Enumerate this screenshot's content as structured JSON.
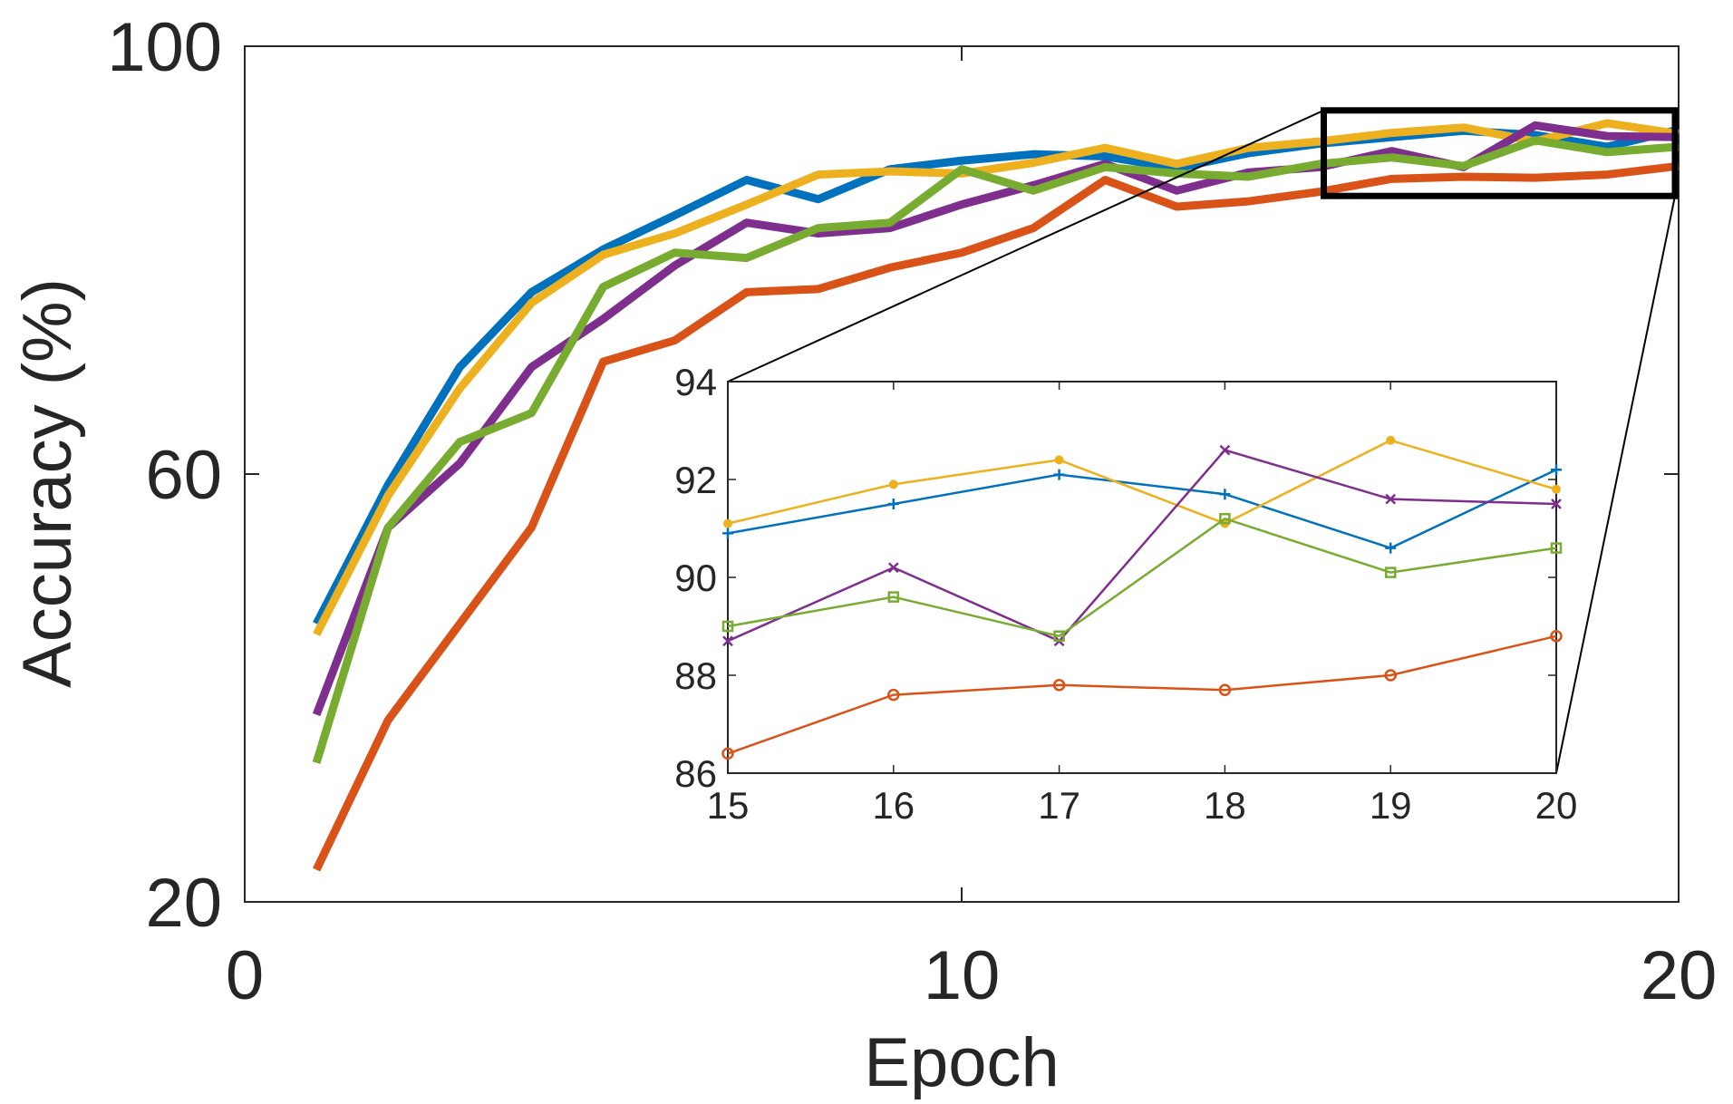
{
  "chart_data": {
    "main": {
      "type": "line",
      "title": "",
      "xlabel": "Epoch",
      "ylabel": "Accuracy (%)",
      "xlim": [
        0,
        20
      ],
      "ylim": [
        20,
        100
      ],
      "xticks": [
        0,
        10,
        20
      ],
      "xtick_labels": [
        "0",
        "10",
        "20"
      ],
      "yticks": [
        20,
        60,
        100
      ],
      "ytick_labels": [
        "20",
        "60",
        "100"
      ],
      "x": [
        1,
        2,
        3,
        4,
        5,
        6,
        7,
        8,
        9,
        10,
        11,
        12,
        13,
        14,
        15,
        16,
        17,
        18,
        19,
        20
      ],
      "series": [
        {
          "name": "blue",
          "color": "#0072BD",
          "values": [
            46,
            59,
            70,
            77,
            81,
            84.2,
            87.5,
            85.7,
            88.5,
            89.3,
            89.9,
            89.7,
            88.6,
            90,
            90.9,
            91.5,
            92.1,
            91.7,
            90.6,
            92.2
          ]
        },
        {
          "name": "orange",
          "color": "#D95319",
          "values": [
            23,
            37,
            46,
            55,
            70.5,
            72.5,
            77,
            77.3,
            79.3,
            80.7,
            83,
            87.5,
            85,
            85.5,
            86.4,
            87.6,
            87.8,
            87.7,
            88,
            88.8
          ]
        },
        {
          "name": "yellow",
          "color": "#EDB120",
          "values": [
            45,
            58,
            68,
            76,
            80.5,
            82.5,
            85.2,
            88,
            88.3,
            88.1,
            89.1,
            90.5,
            89,
            90.5,
            91.1,
            91.9,
            92.4,
            91.1,
            92.8,
            91.8
          ]
        },
        {
          "name": "purple",
          "color": "#7E2F8E",
          "values": [
            37.5,
            55,
            61,
            70,
            74.5,
            79.5,
            83.5,
            82.5,
            83,
            85.2,
            87,
            89,
            86.5,
            88.2,
            88.7,
            90.2,
            88.7,
            92.6,
            91.6,
            91.5
          ]
        },
        {
          "name": "green",
          "color": "#77AC30",
          "values": [
            33,
            55,
            63,
            65.7,
            77.5,
            80.7,
            80.2,
            83,
            83.5,
            88.5,
            86.5,
            88.7,
            88.1,
            87.8,
            89,
            89.6,
            88.8,
            91.2,
            90.1,
            90.6
          ]
        }
      ],
      "zoom_box": {
        "xlim": [
          15,
          20
        ],
        "ylim": [
          86,
          94
        ]
      }
    },
    "inset": {
      "type": "line",
      "xlim": [
        15,
        20
      ],
      "ylim": [
        86,
        94
      ],
      "xticks": [
        15,
        16,
        17,
        18,
        19,
        20
      ],
      "xtick_labels": [
        "15",
        "16",
        "17",
        "18",
        "19",
        "20"
      ],
      "yticks": [
        86,
        88,
        90,
        92,
        94
      ],
      "ytick_labels": [
        "86",
        "88",
        "90",
        "92",
        "94"
      ],
      "x": [
        15,
        16,
        17,
        18,
        19,
        20
      ],
      "series": [
        {
          "name": "blue",
          "color": "#0072BD",
          "marker": "plus",
          "values": [
            90.9,
            91.5,
            92.1,
            91.7,
            90.6,
            92.2
          ]
        },
        {
          "name": "orange",
          "color": "#D95319",
          "marker": "circle",
          "values": [
            86.4,
            87.6,
            87.8,
            87.7,
            88,
            88.8
          ]
        },
        {
          "name": "yellow",
          "color": "#EDB120",
          "marker": "dot",
          "values": [
            91.1,
            91.9,
            92.4,
            91.1,
            92.8,
            91.8
          ]
        },
        {
          "name": "purple",
          "color": "#7E2F8E",
          "marker": "x",
          "values": [
            88.7,
            90.2,
            88.7,
            92.6,
            91.6,
            91.5
          ]
        },
        {
          "name": "green",
          "color": "#77AC30",
          "marker": "square",
          "values": [
            89,
            89.6,
            88.8,
            91.2,
            90.1,
            90.6
          ]
        }
      ]
    }
  }
}
